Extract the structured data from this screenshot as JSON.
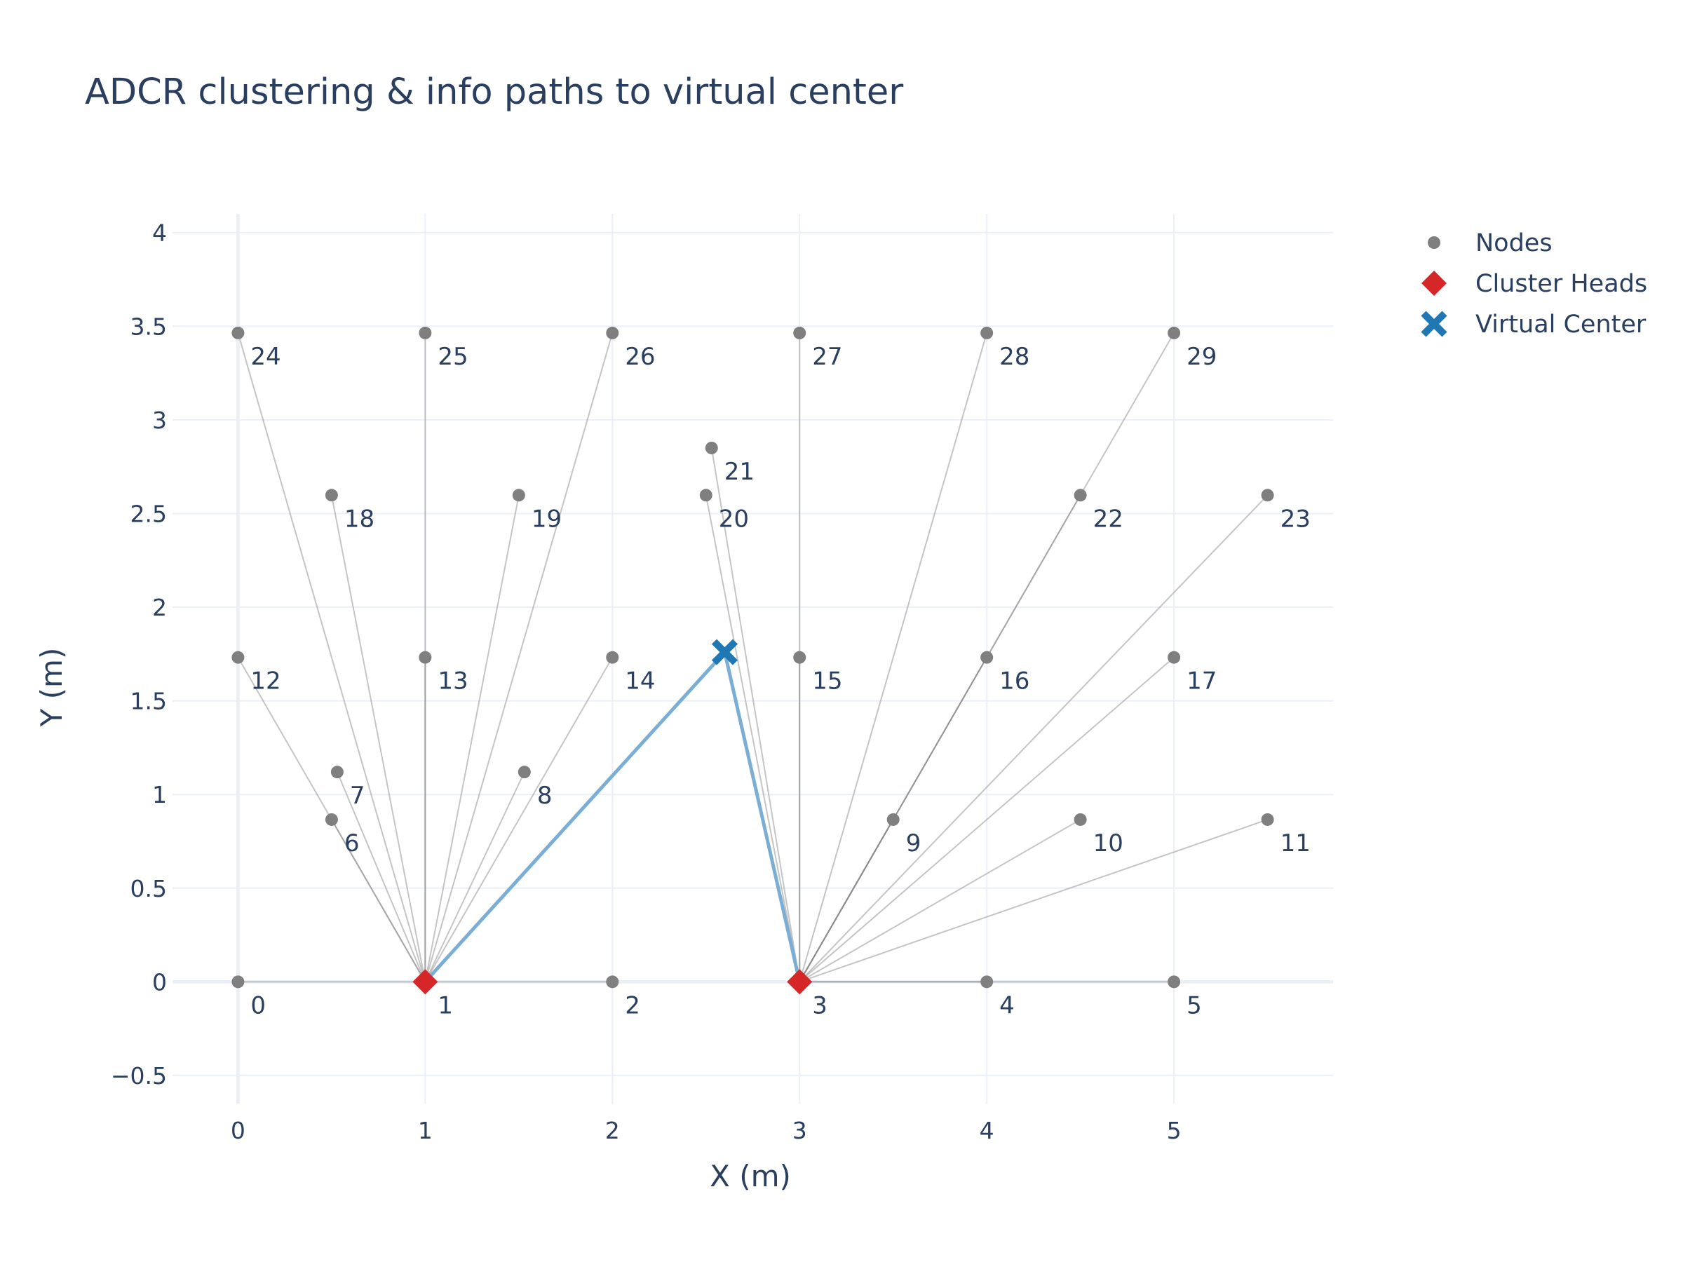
{
  "chart_data": {
    "type": "scatter",
    "title": "ADCR clustering & info paths to virtual center",
    "xlabel": "X (m)",
    "ylabel": "Y (m)",
    "xlim": [
      -0.35,
      5.85
    ],
    "ylim": [
      -0.65,
      4.1
    ],
    "x_ticks": [
      0,
      1,
      2,
      3,
      4,
      5
    ],
    "y_ticks": [
      -0.5,
      0,
      0.5,
      1,
      1.5,
      2,
      2.5,
      3,
      3.5,
      4
    ],
    "x_tick_labels": [
      "0",
      "1",
      "2",
      "3",
      "4",
      "5"
    ],
    "y_tick_labels": [
      "−0.5",
      "0",
      "0.5",
      "1",
      "1.5",
      "2",
      "2.5",
      "3",
      "3.5",
      "4"
    ],
    "grid": true,
    "legend_position": "top-right",
    "legend": [
      {
        "name": "Nodes",
        "symbol": "circle",
        "color": "#7f7f7f"
      },
      {
        "name": "Cluster Heads",
        "symbol": "diamond",
        "color": "#d62728"
      },
      {
        "name": "Virtual Center",
        "symbol": "x",
        "color": "#1f77b4"
      }
    ],
    "nodes": [
      {
        "label": "0",
        "x": 0,
        "y": 0
      },
      {
        "label": "1",
        "x": 1,
        "y": 0
      },
      {
        "label": "2",
        "x": 2,
        "y": 0
      },
      {
        "label": "3",
        "x": 3,
        "y": 0
      },
      {
        "label": "4",
        "x": 4,
        "y": 0
      },
      {
        "label": "5",
        "x": 5,
        "y": 0
      },
      {
        "label": "6",
        "x": 0.5,
        "y": 0.866
      },
      {
        "label": "7",
        "x": 0.53,
        "y": 1.12
      },
      {
        "label": "8",
        "x": 1.53,
        "y": 1.12
      },
      {
        "label": "9",
        "x": 3.5,
        "y": 0.866
      },
      {
        "label": "10",
        "x": 4.5,
        "y": 0.866
      },
      {
        "label": "11",
        "x": 5.5,
        "y": 0.866
      },
      {
        "label": "12",
        "x": 0,
        "y": 1.732
      },
      {
        "label": "13",
        "x": 1,
        "y": 1.732
      },
      {
        "label": "14",
        "x": 2,
        "y": 1.732
      },
      {
        "label": "15",
        "x": 3,
        "y": 1.732
      },
      {
        "label": "16",
        "x": 4,
        "y": 1.732
      },
      {
        "label": "17",
        "x": 5,
        "y": 1.732
      },
      {
        "label": "18",
        "x": 0.5,
        "y": 2.598
      },
      {
        "label": "19",
        "x": 1.5,
        "y": 2.598
      },
      {
        "label": "20",
        "x": 2.5,
        "y": 2.598
      },
      {
        "label": "21",
        "x": 2.53,
        "y": 2.85
      },
      {
        "label": "22",
        "x": 4.5,
        "y": 2.598
      },
      {
        "label": "23",
        "x": 5.5,
        "y": 2.598
      },
      {
        "label": "24",
        "x": 0,
        "y": 3.464
      },
      {
        "label": "25",
        "x": 1,
        "y": 3.464
      },
      {
        "label": "26",
        "x": 2,
        "y": 3.464
      },
      {
        "label": "27",
        "x": 3,
        "y": 3.464
      },
      {
        "label": "28",
        "x": 4,
        "y": 3.464
      },
      {
        "label": "29",
        "x": 5,
        "y": 3.464
      }
    ],
    "cluster_heads": [
      {
        "x": 1,
        "y": 0
      },
      {
        "x": 3,
        "y": 0
      }
    ],
    "virtual_center": {
      "x": 2.6,
      "y": 1.76
    },
    "member_links": [
      {
        "from": "0",
        "to": "1"
      },
      {
        "from": "2",
        "to": "1"
      },
      {
        "from": "6",
        "to": "1"
      },
      {
        "from": "7",
        "to": "1"
      },
      {
        "from": "8",
        "to": "1"
      },
      {
        "from": "12",
        "to": "1"
      },
      {
        "from": "13",
        "to": "1"
      },
      {
        "from": "14",
        "to": "1"
      },
      {
        "from": "18",
        "to": "1"
      },
      {
        "from": "19",
        "to": "1"
      },
      {
        "from": "24",
        "to": "1"
      },
      {
        "from": "25",
        "to": "1"
      },
      {
        "from": "26",
        "to": "1"
      },
      {
        "from": "4",
        "to": "3"
      },
      {
        "from": "5",
        "to": "3"
      },
      {
        "from": "9",
        "to": "3"
      },
      {
        "from": "10",
        "to": "3"
      },
      {
        "from": "11",
        "to": "3"
      },
      {
        "from": "15",
        "to": "3"
      },
      {
        "from": "16",
        "to": "3"
      },
      {
        "from": "17",
        "to": "3"
      },
      {
        "from": "20",
        "to": "3"
      },
      {
        "from": "21",
        "to": "3"
      },
      {
        "from": "22",
        "to": "3"
      },
      {
        "from": "23",
        "to": "3"
      },
      {
        "from": "27",
        "to": "3"
      },
      {
        "from": "28",
        "to": "3"
      },
      {
        "from": "29",
        "to": "3"
      }
    ],
    "center_links": [
      {
        "from": "1",
        "to": "virtual_center"
      },
      {
        "from": "3",
        "to": "virtual_center"
      }
    ],
    "colors": {
      "node": "#7f7f7f",
      "cluster_head": "#d62728",
      "virtual_center": "#1f77b4",
      "member_link": "#7f7f7f",
      "center_link": "#7aaed4",
      "grid": "#ebf0f8",
      "text": "#2a3f5f"
    }
  }
}
